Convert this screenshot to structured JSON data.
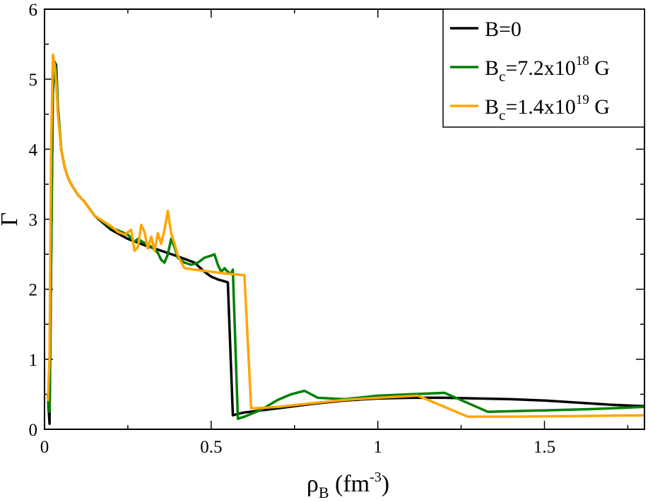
{
  "chart_data": {
    "type": "line",
    "xlabel": {
      "base": "ρ",
      "sub": "B",
      "unit_pre": " (fm",
      "unit_sup": "-3",
      "unit_post": ")"
    },
    "ylabel": "Γ",
    "xlim": [
      0,
      1.8
    ],
    "ylim": [
      0,
      6
    ],
    "xticks": [
      0,
      0.5,
      1,
      1.5
    ],
    "xtick_labels": [
      "0",
      "0.5",
      "1",
      "1.5"
    ],
    "xminor_step": 0.25,
    "yticks": [
      0,
      1,
      2,
      3,
      4,
      5,
      6
    ],
    "ytick_labels": [
      "0",
      "1",
      "2",
      "3",
      "4",
      "5",
      "6"
    ],
    "yminor_step": 0.5,
    "grid": false,
    "legend_position": "top-right",
    "series": [
      {
        "name": "B=0",
        "legend": {
          "base": "B=0",
          "sub": "",
          "mid": "",
          "sup": "",
          "tail": ""
        },
        "color": "#000000",
        "x": [
          0.01,
          0.015,
          0.02,
          0.025,
          0.03,
          0.035,
          0.04,
          0.05,
          0.06,
          0.07,
          0.08,
          0.1,
          0.12,
          0.15,
          0.2,
          0.25,
          0.3,
          0.35,
          0.4,
          0.45,
          0.48,
          0.5,
          0.52,
          0.55,
          0.55,
          0.565,
          0.58,
          0.6,
          0.65,
          0.7,
          0.8,
          0.9,
          1.0,
          1.1,
          1.2,
          1.3,
          1.4,
          1.5,
          1.6,
          1.7,
          1.8
        ],
        "y": [
          0.5,
          0.08,
          2.5,
          4.8,
          5.25,
          5.2,
          4.6,
          4.0,
          3.75,
          3.6,
          3.5,
          3.35,
          3.25,
          3.05,
          2.85,
          2.72,
          2.63,
          2.55,
          2.47,
          2.38,
          2.25,
          2.18,
          2.14,
          2.1,
          2.1,
          0.2,
          0.22,
          0.24,
          0.27,
          0.3,
          0.36,
          0.41,
          0.44,
          0.45,
          0.45,
          0.44,
          0.43,
          0.41,
          0.38,
          0.35,
          0.33
        ]
      },
      {
        "name": "Bc=7.2x10^18 G",
        "legend": {
          "base": "B",
          "sub": "c",
          "mid": "=7.2x10",
          "sup": "18",
          "tail": " G"
        },
        "color": "#008000",
        "x": [
          0.01,
          0.015,
          0.02,
          0.025,
          0.03,
          0.035,
          0.04,
          0.05,
          0.06,
          0.07,
          0.08,
          0.1,
          0.12,
          0.15,
          0.2,
          0.25,
          0.27,
          0.28,
          0.3,
          0.32,
          0.34,
          0.35,
          0.36,
          0.37,
          0.38,
          0.39,
          0.4,
          0.42,
          0.44,
          0.46,
          0.48,
          0.5,
          0.51,
          0.52,
          0.53,
          0.54,
          0.55,
          0.56,
          0.565,
          0.58,
          0.6,
          0.65,
          0.7,
          0.74,
          0.78,
          0.82,
          0.9,
          1.0,
          1.1,
          1.2,
          1.33,
          1.5,
          1.65,
          1.8
        ],
        "y": [
          0.5,
          0.25,
          2.5,
          4.9,
          5.25,
          5.15,
          4.6,
          4.0,
          3.75,
          3.6,
          3.5,
          3.35,
          3.25,
          3.05,
          2.88,
          2.78,
          2.68,
          2.72,
          2.66,
          2.61,
          2.52,
          2.42,
          2.38,
          2.5,
          2.72,
          2.6,
          2.45,
          2.38,
          2.35,
          2.38,
          2.45,
          2.48,
          2.5,
          2.35,
          2.25,
          2.3,
          2.25,
          2.22,
          2.28,
          0.15,
          0.18,
          0.28,
          0.42,
          0.5,
          0.55,
          0.45,
          0.43,
          0.48,
          0.5,
          0.52,
          0.25,
          0.27,
          0.29,
          0.32
        ]
      },
      {
        "name": "Bc=1.4x10^19 G",
        "legend": {
          "base": "B",
          "sub": "c",
          "mid": "=1.4x10",
          "sup": "19",
          "tail": " G"
        },
        "color": "#ffa500",
        "x": [
          0.01,
          0.015,
          0.02,
          0.025,
          0.03,
          0.035,
          0.04,
          0.05,
          0.06,
          0.07,
          0.08,
          0.1,
          0.12,
          0.15,
          0.2,
          0.22,
          0.24,
          0.26,
          0.27,
          0.28,
          0.29,
          0.3,
          0.31,
          0.32,
          0.33,
          0.34,
          0.35,
          0.36,
          0.37,
          0.38,
          0.39,
          0.4,
          0.42,
          0.45,
          0.5,
          0.55,
          0.6,
          0.6,
          0.62,
          0.63,
          0.7,
          0.8,
          0.9,
          1.0,
          1.12,
          1.27,
          1.4,
          1.6,
          1.8
        ],
        "y": [
          0.4,
          1.0,
          4.0,
          5.35,
          5.2,
          4.95,
          4.5,
          4.0,
          3.75,
          3.6,
          3.5,
          3.35,
          3.25,
          3.05,
          2.9,
          2.82,
          2.78,
          2.85,
          2.55,
          2.6,
          2.92,
          2.82,
          2.58,
          2.75,
          2.55,
          2.8,
          2.65,
          2.85,
          3.12,
          2.8,
          2.65,
          2.48,
          2.3,
          2.28,
          2.25,
          2.22,
          2.2,
          2.18,
          0.3,
          0.3,
          0.32,
          0.37,
          0.42,
          0.45,
          0.48,
          0.18,
          0.18,
          0.19,
          0.2
        ]
      }
    ]
  }
}
